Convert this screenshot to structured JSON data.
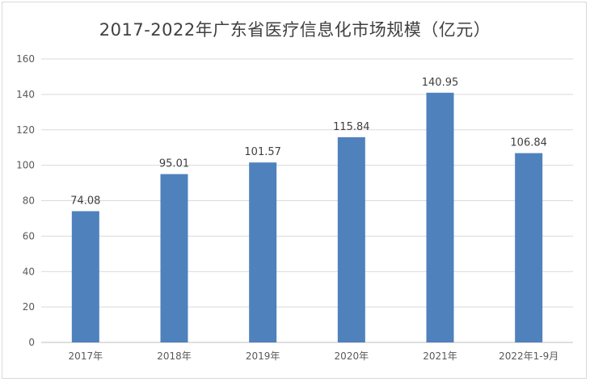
{
  "chart_data": {
    "type": "bar",
    "title": "2017-2022年广东省医疗信息化市场规模（亿元）",
    "categories": [
      "2017年",
      "2018年",
      "2019年",
      "2020年",
      "2021年",
      "2022年1-9月"
    ],
    "values": [
      74.08,
      95.01,
      101.57,
      115.84,
      140.95,
      106.84
    ],
    "data_labels": [
      "74.08",
      "95.01",
      "101.57",
      "115.84",
      "140.95",
      "106.84"
    ],
    "xlabel": "",
    "ylabel": "",
    "ylim": [
      0,
      160
    ],
    "yticks": [
      0,
      20,
      40,
      60,
      80,
      100,
      120,
      140,
      160
    ],
    "grid": true,
    "legend": "none",
    "bar_color": "#4f81bd"
  }
}
